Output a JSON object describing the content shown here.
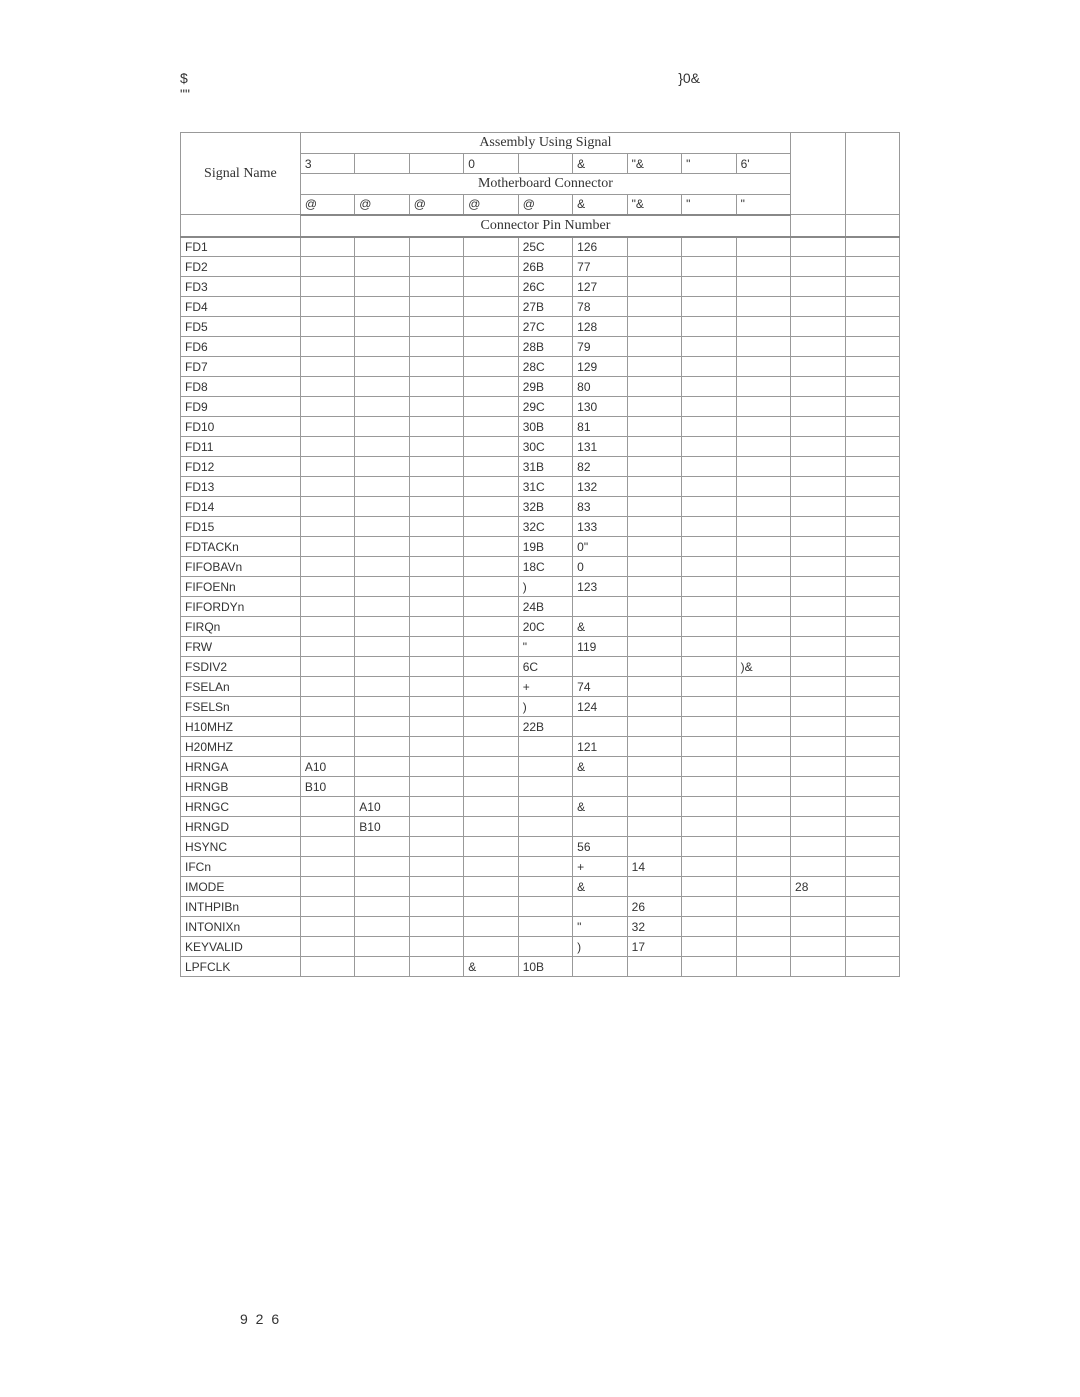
{
  "header": {
    "left_1": "$",
    "left_2": "\"\"",
    "right_1": "}0&"
  },
  "table": {
    "header_assembly": "Assembly Using Signal",
    "header_signal_name": "Signal Name",
    "header_motherboard": "Motherboard Connector",
    "header_connector_pin": "Connector Pin Number",
    "row_codes_1": [
      "3",
      "",
      "",
      "0",
      "",
      "&",
      "\"&",
      "\"",
      "6'",
      "",
      ""
    ],
    "row_codes_2": [
      "@",
      "@",
      "@",
      "@",
      "@",
      "&",
      "\"&",
      "\"",
      "\"",
      "",
      ""
    ],
    "rows": [
      {
        "name": "FD1",
        "c": [
          "",
          "",
          "",
          "",
          "25C",
          "126",
          "",
          "",
          "",
          "",
          ""
        ]
      },
      {
        "name": "FD2",
        "c": [
          "",
          "",
          "",
          "",
          "26B",
          "77",
          "",
          "",
          "",
          "",
          ""
        ]
      },
      {
        "name": "FD3",
        "c": [
          "",
          "",
          "",
          "",
          "26C",
          "127",
          "",
          "",
          "",
          "",
          ""
        ]
      },
      {
        "name": "FD4",
        "c": [
          "",
          "",
          "",
          "",
          "27B",
          "78",
          "",
          "",
          "",
          "",
          ""
        ]
      },
      {
        "name": "FD5",
        "c": [
          "",
          "",
          "",
          "",
          "27C",
          "128",
          "",
          "",
          "",
          "",
          ""
        ]
      },
      {
        "name": "FD6",
        "c": [
          "",
          "",
          "",
          "",
          "28B",
          "79",
          "",
          "",
          "",
          "",
          ""
        ]
      },
      {
        "name": "FD7",
        "c": [
          "",
          "",
          "",
          "",
          "28C",
          "129",
          "",
          "",
          "",
          "",
          ""
        ]
      },
      {
        "name": "FD8",
        "c": [
          "",
          "",
          "",
          "",
          "29B",
          "80",
          "",
          "",
          "",
          "",
          ""
        ]
      },
      {
        "name": "FD9",
        "c": [
          "",
          "",
          "",
          "",
          "29C",
          "130",
          "",
          "",
          "",
          "",
          ""
        ]
      },
      {
        "name": "FD10",
        "c": [
          "",
          "",
          "",
          "",
          "30B",
          "81",
          "",
          "",
          "",
          "",
          ""
        ]
      },
      {
        "name": "FD11",
        "c": [
          "",
          "",
          "",
          "",
          "30C",
          "131",
          "",
          "",
          "",
          "",
          ""
        ]
      },
      {
        "name": "FD12",
        "c": [
          "",
          "",
          "",
          "",
          "31B",
          "82",
          "",
          "",
          "",
          "",
          ""
        ]
      },
      {
        "name": "FD13",
        "c": [
          "",
          "",
          "",
          "",
          "31C",
          "132",
          "",
          "",
          "",
          "",
          ""
        ]
      },
      {
        "name": "FD14",
        "c": [
          "",
          "",
          "",
          "",
          "32B",
          "83",
          "",
          "",
          "",
          "",
          ""
        ]
      },
      {
        "name": "FD15",
        "c": [
          "",
          "",
          "",
          "",
          "32C",
          "133",
          "",
          "",
          "",
          "",
          ""
        ]
      },
      {
        "name": "FDTACKn",
        "c": [
          "",
          "",
          "",
          "",
          "19B",
          "0\"",
          "",
          "",
          "",
          "",
          ""
        ]
      },
      {
        "name": "FIFOBAVn",
        "c": [
          "",
          "",
          "",
          "",
          "18C",
          "0",
          "",
          "",
          "",
          "",
          ""
        ]
      },
      {
        "name": "FIFOENn",
        "c": [
          "",
          "",
          "",
          "",
          ")",
          "123",
          "",
          "",
          "",
          "",
          ""
        ]
      },
      {
        "name": "FIFORDYn",
        "c": [
          "",
          "",
          "",
          "",
          "24B",
          "",
          "",
          "",
          "",
          "",
          ""
        ]
      },
      {
        "name": "FIRQn",
        "c": [
          "",
          "",
          "",
          "",
          "20C",
          "&",
          "",
          "",
          "",
          "",
          ""
        ]
      },
      {
        "name": "FRW",
        "c": [
          "",
          "",
          "",
          "",
          "\"",
          "119",
          "",
          "",
          "",
          "",
          ""
        ]
      },
      {
        "name": "FSDIV2",
        "c": [
          "",
          "",
          "",
          "",
          "6C",
          "",
          "",
          "",
          ")&",
          "",
          ""
        ]
      },
      {
        "name": "FSELAn",
        "c": [
          "",
          "",
          "",
          "",
          "+",
          "74",
          "",
          "",
          "",
          "",
          ""
        ]
      },
      {
        "name": "FSELSn",
        "c": [
          "",
          "",
          "",
          "",
          ")",
          "124",
          "",
          "",
          "",
          "",
          ""
        ]
      },
      {
        "name": "H10MHZ",
        "c": [
          "",
          "",
          "",
          "",
          "22B",
          "",
          "",
          "",
          "",
          "",
          ""
        ]
      },
      {
        "name": "H20MHZ",
        "c": [
          "",
          "",
          "",
          "",
          "",
          "121",
          "",
          "",
          "",
          "",
          ""
        ]
      },
      {
        "name": "HRNGA",
        "c": [
          "A10",
          "",
          "",
          "",
          "",
          "&",
          "",
          "",
          "",
          "",
          ""
        ]
      },
      {
        "name": "HRNGB",
        "c": [
          "B10",
          "",
          "",
          "",
          "",
          "",
          "",
          "",
          "",
          "",
          ""
        ]
      },
      {
        "name": "HRNGC",
        "c": [
          "",
          "A10",
          "",
          "",
          "",
          "&",
          "",
          "",
          "",
          "",
          ""
        ]
      },
      {
        "name": "HRNGD",
        "c": [
          "",
          "B10",
          "",
          "",
          "",
          "",
          "",
          "",
          "",
          "",
          ""
        ]
      },
      {
        "name": "HSYNC",
        "c": [
          "",
          "",
          "",
          "",
          "",
          "56",
          "",
          "",
          "",
          "",
          ""
        ]
      },
      {
        "name": "IFCn",
        "c": [
          "",
          "",
          "",
          "",
          "",
          "+",
          "14",
          "",
          "",
          "",
          ""
        ]
      },
      {
        "name": "IMODE",
        "c": [
          "",
          "",
          "",
          "",
          "",
          "&",
          "",
          "",
          "",
          "28",
          ""
        ]
      },
      {
        "name": "INTHPIBn",
        "c": [
          "",
          "",
          "",
          "",
          "",
          "",
          "26",
          "",
          "",
          "",
          ""
        ]
      },
      {
        "name": "INTONIXn",
        "c": [
          "",
          "",
          "",
          "",
          "",
          "\"",
          "32",
          "",
          "",
          "",
          ""
        ]
      },
      {
        "name": "KEYVALID",
        "c": [
          "",
          "",
          "",
          "",
          "",
          ")",
          "17",
          "",
          "",
          "",
          ""
        ]
      },
      {
        "name": "LPFCLK",
        "c": [
          "",
          "",
          "",
          "&",
          "10B",
          "",
          "",
          "",
          "",
          "",
          ""
        ]
      }
    ]
  },
  "page_number": "9 2 6",
  "colors": {
    "background": "#ffffff",
    "text": "#333333",
    "border": "#999999"
  },
  "fonts": {
    "body_family": "Arial, Helvetica, sans-serif",
    "header_row_family": "Times New Roman, serif",
    "body_size_pt": 12,
    "header_row_size_pt": 14
  }
}
